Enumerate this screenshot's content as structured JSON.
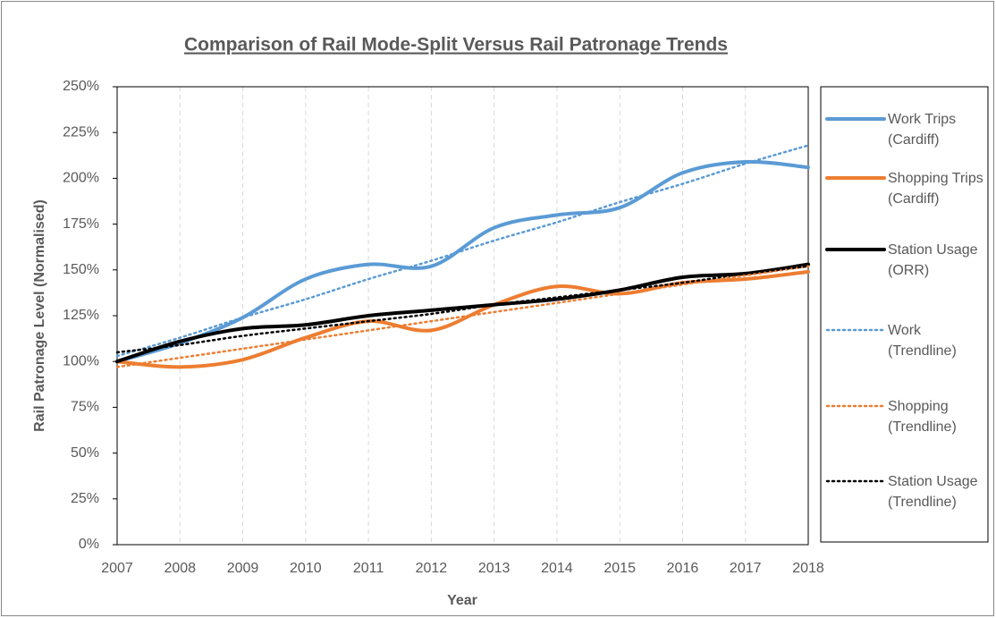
{
  "chart_data": {
    "type": "line",
    "title": "Comparison  of Rail Mode-Split Versus Rail Patronage Trends",
    "xlabel": "Year",
    "ylabel": "Rail Patronage Level (Normalised)",
    "x": [
      2007,
      2008,
      2009,
      2010,
      2011,
      2012,
      2013,
      2014,
      2015,
      2016,
      2017,
      2018
    ],
    "xlim": [
      2007,
      2018
    ],
    "xticks": [
      2007,
      2008,
      2009,
      2010,
      2011,
      2012,
      2013,
      2014,
      2015,
      2016,
      2017,
      2018
    ],
    "ylim": [
      0,
      250
    ],
    "yticks": [
      {
        "value": 0,
        "label": "0%"
      },
      {
        "value": 25,
        "label": "25%"
      },
      {
        "value": 50,
        "label": "50%"
      },
      {
        "value": 75,
        "label": "75%"
      },
      {
        "value": 100,
        "label": "100%"
      },
      {
        "value": 125,
        "label": "125%"
      },
      {
        "value": 150,
        "label": "150%"
      },
      {
        "value": 175,
        "label": "175%"
      },
      {
        "value": 200,
        "label": "200%"
      },
      {
        "value": 225,
        "label": "225%"
      },
      {
        "value": 250,
        "label": "250%"
      }
    ],
    "grid": true,
    "legend": "right",
    "series": [
      {
        "name": "Work Trips (Cardiff)",
        "color": "#5b9bd5",
        "style": "solid",
        "values": [
          100,
          110,
          124,
          145,
          153,
          152,
          173,
          180,
          184,
          203,
          209,
          206
        ]
      },
      {
        "name": "Shopping Trips (Cardiff)",
        "color": "#ed7d31",
        "style": "solid",
        "values": [
          100,
          97,
          101,
          113,
          122,
          117,
          131,
          141,
          137,
          143,
          145,
          149
        ]
      },
      {
        "name": "Station Usage (ORR)",
        "color": "#000000",
        "style": "solid",
        "values": [
          100,
          111,
          118,
          120,
          125,
          128,
          131,
          134,
          139,
          146,
          148,
          153
        ]
      },
      {
        "name": "Work (Trendline)",
        "color": "#5b9bd5",
        "style": "dotted",
        "values": [
          103,
          113,
          124,
          134,
          145,
          155,
          166,
          176,
          187,
          197,
          208,
          218
        ]
      },
      {
        "name": "Shopping (Trendline)",
        "color": "#ed7d31",
        "style": "dotted",
        "values": [
          97,
          102,
          107,
          112,
          117,
          122,
          127,
          132,
          137,
          142,
          147,
          152
        ]
      },
      {
        "name": "Station Usage (Trendline)",
        "color": "#000000",
        "style": "dotted",
        "values": [
          105,
          109,
          114,
          118,
          122,
          126,
          131,
          135,
          139,
          143,
          148,
          152
        ]
      }
    ]
  }
}
